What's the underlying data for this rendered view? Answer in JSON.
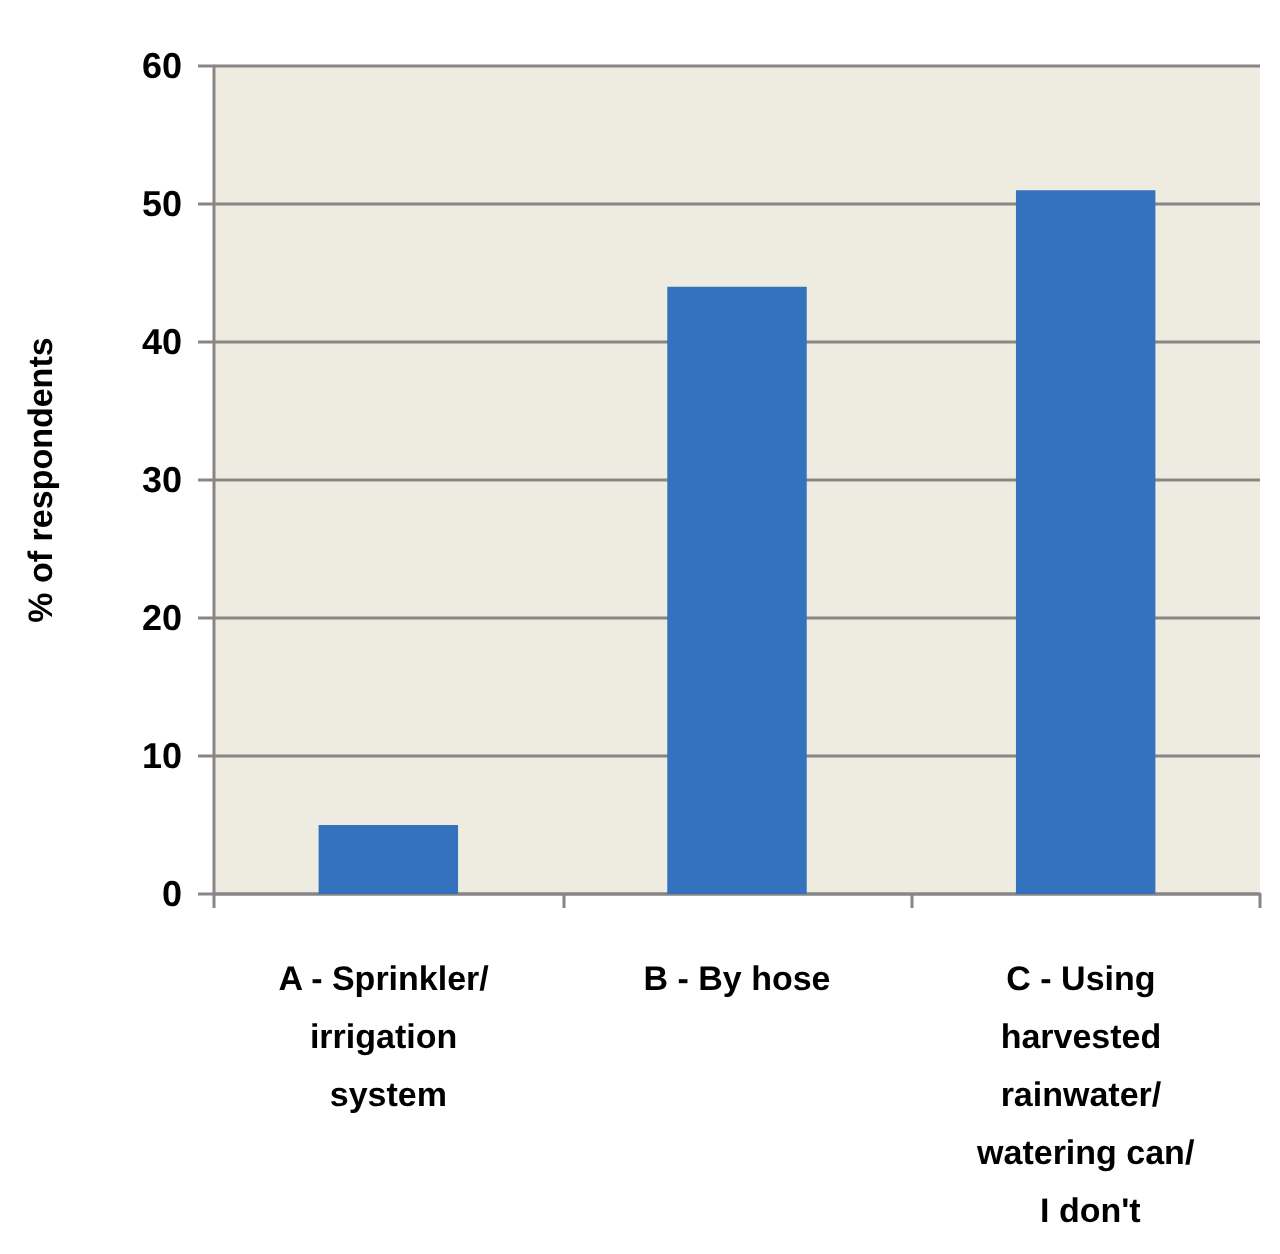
{
  "chart_data": {
    "type": "bar",
    "ylabel": "% of respondents",
    "categories": [
      "A - Sprinkler/ irrigation system",
      "B - By hose",
      "C - Using harvested rainwater/ watering can/ I don't"
    ],
    "values": [
      5,
      44,
      51
    ],
    "color": "#3572bd",
    "ylim": [
      0,
      60
    ],
    "yticks": [
      0,
      10,
      20,
      30,
      40,
      50,
      60
    ],
    "grid": "y"
  }
}
